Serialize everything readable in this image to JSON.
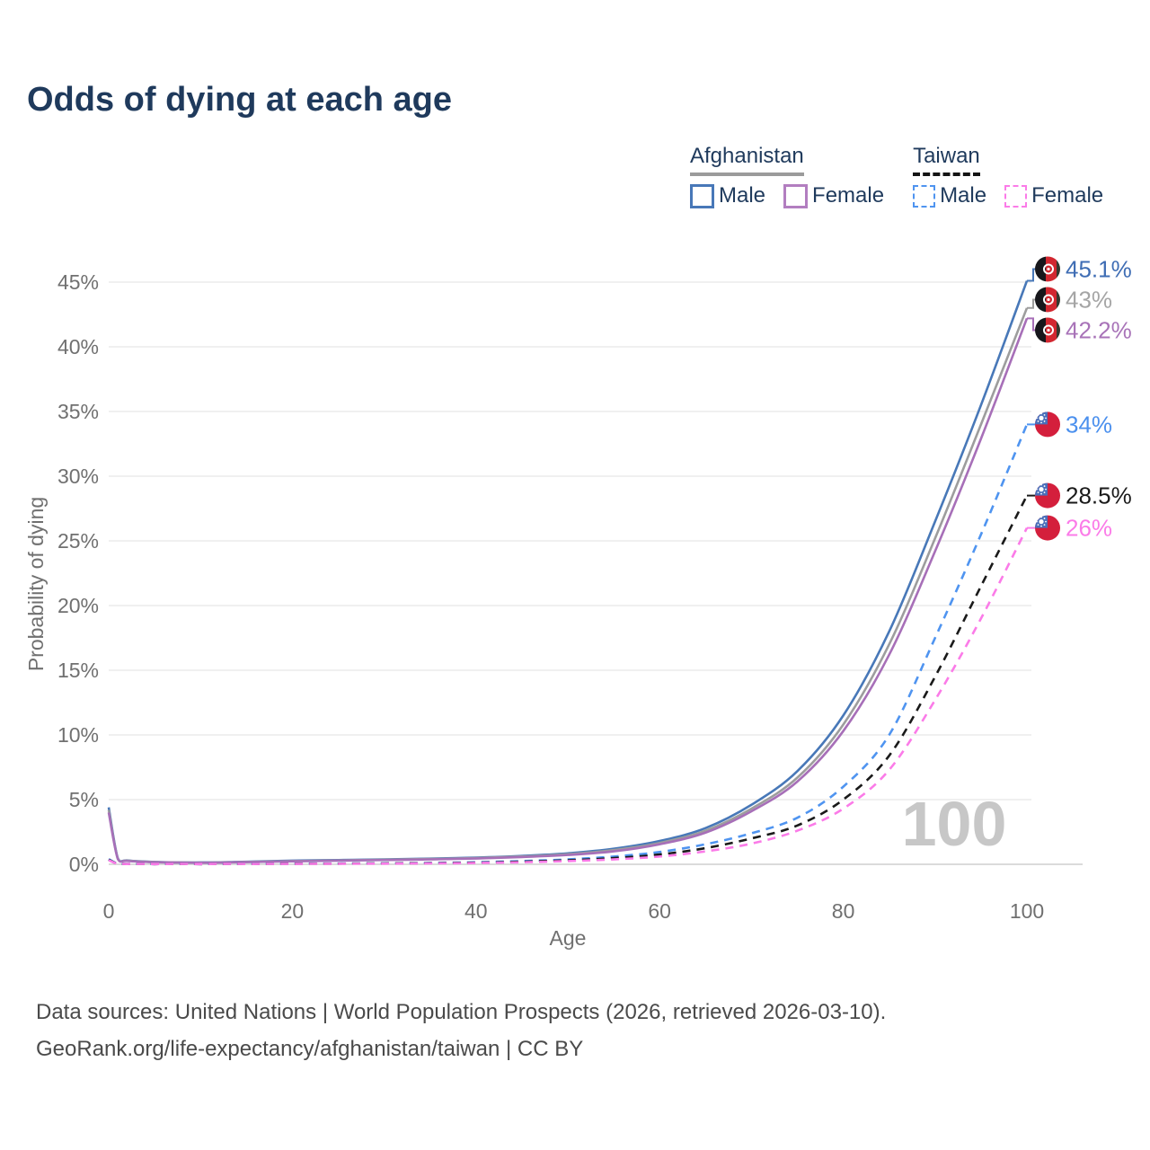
{
  "title": "Odds of dying at each age",
  "legend": {
    "groups": [
      {
        "country": "Afghanistan",
        "line_style": "solid",
        "underline_color": "#9b9b9b",
        "items": [
          {
            "label": "Male",
            "color": "#4878b8",
            "dashed": false
          },
          {
            "label": "Female",
            "color": "#b27ec0",
            "dashed": false
          }
        ]
      },
      {
        "country": "Taiwan",
        "line_style": "dashed",
        "underline_color": "#141414",
        "items": [
          {
            "label": "Male",
            "color": "#4f94f0",
            "dashed": true
          },
          {
            "label": "Female",
            "color": "#fb7be8",
            "dashed": true
          }
        ]
      }
    ]
  },
  "watermark": "100",
  "footer": {
    "line1": "Data sources: United Nations | World Population Prospects (2026, retrieved 2026-03-10).",
    "line2": "GeoRank.org/life-expectancy/afghanistan/taiwan | CC BY"
  },
  "chart_data": {
    "type": "line",
    "title": "Odds of dying at each age",
    "xlabel": "Age",
    "ylabel": "Probability of dying",
    "xlim": [
      0,
      100
    ],
    "ylim_percent": [
      0,
      45
    ],
    "x_ticks": [
      0,
      20,
      40,
      60,
      80,
      100
    ],
    "y_ticks_percent": [
      0,
      5,
      10,
      15,
      20,
      25,
      30,
      35,
      40,
      45
    ],
    "grid": "horizontal",
    "legend_position": "top-right",
    "ages": [
      0,
      1,
      2,
      5,
      10,
      15,
      20,
      25,
      30,
      35,
      40,
      45,
      50,
      55,
      60,
      65,
      70,
      75,
      80,
      85,
      90,
      95,
      100
    ],
    "series": [
      {
        "name": "Afghanistan Male",
        "country": "Afghanistan",
        "sex": "Male",
        "flag": "af",
        "style": "solid",
        "color": "#4878b8",
        "label_color": "#3f6db4",
        "end_label": "45.1%",
        "values": [
          4.4,
          0.45,
          0.3,
          0.18,
          0.14,
          0.2,
          0.28,
          0.33,
          0.38,
          0.44,
          0.52,
          0.65,
          0.85,
          1.2,
          1.8,
          2.8,
          4.6,
          7.2,
          11.5,
          18.0,
          26.5,
          35.5,
          45.1
        ]
      },
      {
        "name": "Afghanistan Total",
        "country": "Afghanistan",
        "sex": "Both",
        "flag": "af",
        "style": "solid",
        "color": "#9d9d9d",
        "label_color": "#a5a5a5",
        "end_label": "43%",
        "values": [
          4.2,
          0.42,
          0.28,
          0.17,
          0.13,
          0.18,
          0.25,
          0.3,
          0.35,
          0.41,
          0.48,
          0.6,
          0.78,
          1.1,
          1.65,
          2.6,
          4.3,
          6.7,
          10.8,
          17.0,
          25.2,
          34.0,
          43.0
        ]
      },
      {
        "name": "Afghanistan Female",
        "country": "Afghanistan",
        "sex": "Female",
        "flag": "af",
        "style": "solid",
        "color": "#a76fb8",
        "label_color": "#a873b8",
        "end_label": "42.2%",
        "values": [
          4.0,
          0.4,
          0.26,
          0.16,
          0.12,
          0.17,
          0.23,
          0.28,
          0.33,
          0.38,
          0.45,
          0.56,
          0.72,
          1.0,
          1.55,
          2.45,
          4.1,
          6.4,
          10.3,
          16.2,
          24.2,
          32.9,
          42.2
        ]
      },
      {
        "name": "Taiwan Male",
        "country": "Taiwan",
        "sex": "Male",
        "flag": "tw",
        "style": "dashed",
        "color": "#4f94f0",
        "label_color": "#4b90ee",
        "end_label": "34%",
        "values": [
          0.4,
          0.04,
          0.02,
          0.01,
          0.01,
          0.03,
          0.05,
          0.06,
          0.08,
          0.11,
          0.16,
          0.25,
          0.38,
          0.6,
          0.95,
          1.55,
          2.4,
          3.6,
          6.0,
          10.0,
          17.5,
          25.5,
          34.0
        ]
      },
      {
        "name": "Taiwan Total",
        "country": "Taiwan",
        "sex": "Both",
        "flag": "tw",
        "style": "dashed",
        "color": "#1a1a1a",
        "label_color": "#1a1a1a",
        "end_label": "28.5%",
        "values": [
          0.35,
          0.03,
          0.02,
          0.01,
          0.01,
          0.02,
          0.04,
          0.05,
          0.07,
          0.09,
          0.13,
          0.2,
          0.31,
          0.48,
          0.76,
          1.25,
          2.0,
          3.0,
          5.0,
          8.4,
          14.5,
          21.5,
          28.5
        ]
      },
      {
        "name": "Taiwan Female",
        "country": "Taiwan",
        "sex": "Female",
        "flag": "tw",
        "style": "dashed",
        "color": "#fb7be8",
        "label_color": "#fb7be8",
        "end_label": "26%",
        "values": [
          0.32,
          0.03,
          0.02,
          0.01,
          0.01,
          0.02,
          0.03,
          0.04,
          0.05,
          0.07,
          0.1,
          0.16,
          0.25,
          0.38,
          0.6,
          1.0,
          1.6,
          2.6,
          4.3,
          7.3,
          12.7,
          19.0,
          26.0
        ]
      }
    ],
    "colors": {
      "grid": "#ececec",
      "axis_line": "#cfcfcf",
      "tick_text": "#707070",
      "watermark": "#c7c7c7"
    }
  }
}
